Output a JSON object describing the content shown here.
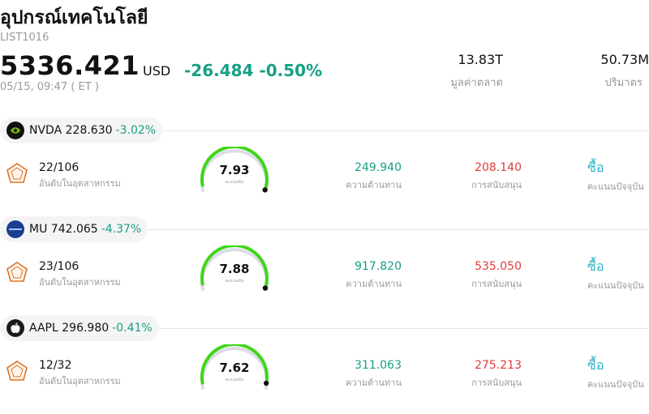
{
  "header": {
    "title": "อุปกรณ์เทคโนโลยี",
    "code": "LIST1016",
    "price": "5336.421",
    "currency": "USD",
    "change": "-26.484",
    "change_pct": "-0.50%",
    "time": "05/15, 09:47 ( ET )",
    "market_cap_value": "13.83T",
    "market_cap_label": "มูลค่าตลาด",
    "volume_value": "50.73M",
    "volume_label": "ปริมาตร"
  },
  "colors": {
    "up": "#16a085",
    "down": "#e23b3b",
    "accent": "#2db3c6",
    "gauge_arc": "#3ed61a"
  },
  "stocks": [
    {
      "ticker": "NVDA",
      "price": "228.630",
      "change_pct": "-3.02%",
      "logo_icon": "nvidia-logo-icon",
      "rank": "22/106",
      "rank_label": "อันดับในอุตสาหกรรม",
      "score": "7.93",
      "score_label": "คะแนนหุ้น",
      "score_fraction": 0.793,
      "resistance": "249.940",
      "resistance_label": "ความต้านทาน",
      "support": "208.140",
      "support_label": "การสนับสนุน",
      "rating": "ซื้อ",
      "rating_label": "คะแนนปัจจุบัน"
    },
    {
      "ticker": "MU",
      "price": "742.065",
      "change_pct": "-4.37%",
      "logo_icon": "micron-logo-icon",
      "rank": "23/106",
      "rank_label": "อันดับในอุตสาหกรรม",
      "score": "7.88",
      "score_label": "คะแนนหุ้น",
      "score_fraction": 0.788,
      "resistance": "917.820",
      "resistance_label": "ความต้านทาน",
      "support": "535.050",
      "support_label": "การสนับสนุน",
      "rating": "ซื้อ",
      "rating_label": "คะแนนปัจจุบัน"
    },
    {
      "ticker": "AAPL",
      "price": "296.980",
      "change_pct": "-0.41%",
      "logo_icon": "apple-logo-icon",
      "rank": "12/32",
      "rank_label": "อันดับในอุตสาหกรรม",
      "score": "7.62",
      "score_label": "คะแนนหุ้น",
      "score_fraction": 0.762,
      "resistance": "311.063",
      "resistance_label": "ความต้านทาน",
      "support": "275.213",
      "support_label": "การสนับสนุน",
      "rating": "ซื้อ",
      "rating_label": "คะแนนปัจจุบัน"
    }
  ]
}
